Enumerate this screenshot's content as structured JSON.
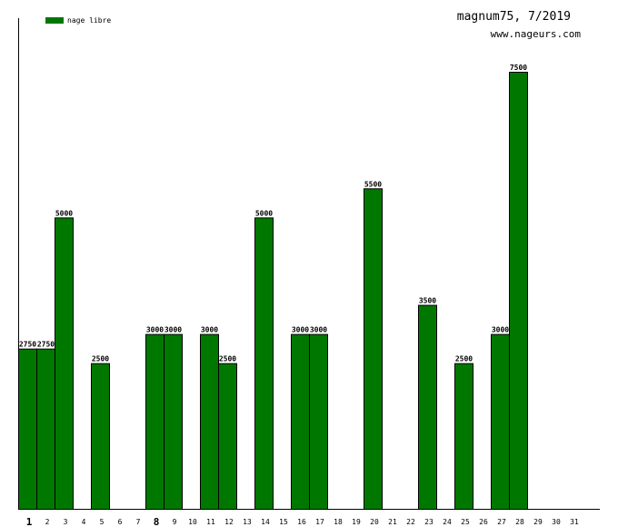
{
  "header": {
    "title": "magnum75, 7/2019",
    "site": "www.nageurs.com"
  },
  "legend": {
    "label": "nage libre",
    "color": "#007800"
  },
  "chart_data": {
    "type": "bar",
    "title": "magnum75, 7/2019",
    "xlabel": "",
    "ylabel": "",
    "ylim": [
      0,
      7500
    ],
    "legend_position": "top-left",
    "grid": false,
    "categories": [
      "1",
      "2",
      "3",
      "4",
      "5",
      "6",
      "7",
      "8",
      "9",
      "10",
      "11",
      "12",
      "13",
      "14",
      "15",
      "16",
      "17",
      "18",
      "19",
      "20",
      "21",
      "22",
      "23",
      "24",
      "25",
      "26",
      "27",
      "28",
      "29",
      "30",
      "31"
    ],
    "emphasized_categories": [
      "1",
      "8"
    ],
    "series": [
      {
        "name": "nage libre",
        "color": "#007800",
        "values": [
          2750,
          2750,
          5000,
          0,
          2500,
          0,
          0,
          3000,
          3000,
          0,
          3000,
          2500,
          0,
          5000,
          0,
          3000,
          3000,
          0,
          0,
          5500,
          0,
          0,
          3500,
          0,
          2500,
          0,
          3000,
          7500,
          0,
          0,
          0
        ]
      }
    ]
  }
}
